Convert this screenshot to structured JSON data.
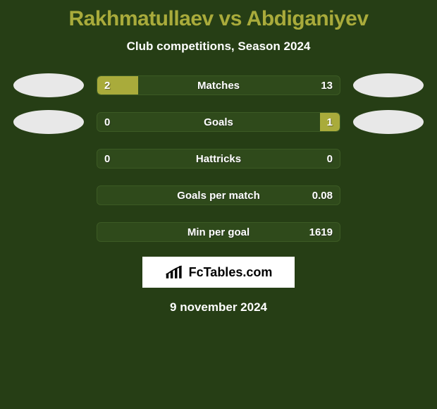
{
  "colors": {
    "background": "#263e15",
    "accent": "#a9ab3b",
    "bar_track": "#2f4a1b",
    "bar_border": "#3c5a24",
    "text_primary": "#ffffff",
    "logo_bg": "#ffffff",
    "logo_text": "#000000"
  },
  "title": "Rakhmatullaev vs Abdiganiyev",
  "subtitle": "Club competitions, Season 2024",
  "logo_text": "FcTables.com",
  "date": "9 november 2024",
  "bars": [
    {
      "label": "Matches",
      "left_value": "2",
      "right_value": "13",
      "left_pct": 17,
      "right_pct": 0,
      "show_avatars": true
    },
    {
      "label": "Goals",
      "left_value": "0",
      "right_value": "1",
      "left_pct": 0,
      "right_pct": 8,
      "show_avatars": true
    },
    {
      "label": "Hattricks",
      "left_value": "0",
      "right_value": "0",
      "left_pct": 0,
      "right_pct": 0,
      "show_avatars": false
    },
    {
      "label": "Goals per match",
      "left_value": "",
      "right_value": "0.08",
      "left_pct": 0,
      "right_pct": 0,
      "show_avatars": false
    },
    {
      "label": "Min per goal",
      "left_value": "",
      "right_value": "1619",
      "left_pct": 0,
      "right_pct": 0,
      "show_avatars": false
    }
  ]
}
